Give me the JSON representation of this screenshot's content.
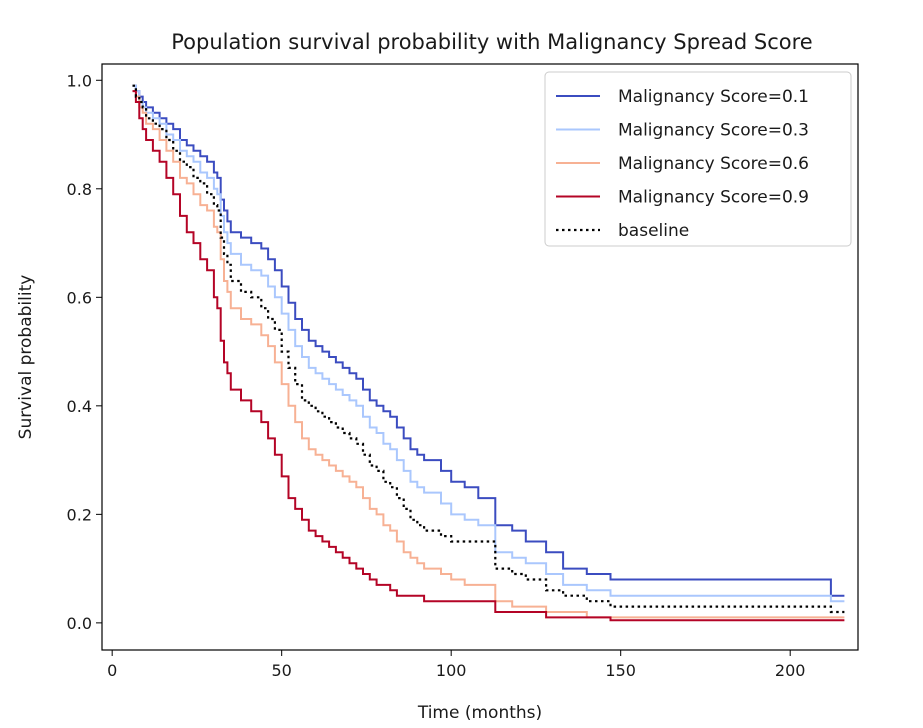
{
  "chart_data": {
    "type": "line",
    "title": "Population survival probability with Malignancy Spread Score",
    "xlabel": "Time (months)",
    "ylabel": "Survival probability",
    "xlim": [
      -3,
      220
    ],
    "ylim": [
      -0.05,
      1.03
    ],
    "xticks": [
      0,
      50,
      100,
      150,
      200
    ],
    "yticks": [
      0.0,
      0.2,
      0.4,
      0.6,
      0.8,
      1.0
    ],
    "grid": false,
    "legend_position": "top-right",
    "step": true,
    "series": [
      {
        "name": "Malignancy Score=0.1",
        "color": "#3b4cc0",
        "dash": "solid",
        "x": [
          6,
          7,
          8,
          9,
          10,
          12,
          14,
          16,
          18,
          20,
          22,
          24,
          26,
          28,
          30,
          31,
          32,
          33,
          34,
          35,
          38,
          41,
          44,
          46,
          48,
          50,
          52,
          54,
          56,
          58,
          60,
          62,
          64,
          66,
          68,
          70,
          72,
          74,
          76,
          78,
          80,
          82,
          84,
          86,
          88,
          90,
          92,
          97,
          100,
          104,
          108,
          113,
          118,
          122,
          128,
          133,
          140,
          147,
          152,
          158,
          165,
          175,
          190,
          205,
          212,
          216
        ],
        "y": [
          0.99,
          0.98,
          0.97,
          0.96,
          0.95,
          0.94,
          0.93,
          0.92,
          0.91,
          0.89,
          0.88,
          0.87,
          0.86,
          0.85,
          0.83,
          0.82,
          0.78,
          0.76,
          0.74,
          0.72,
          0.71,
          0.7,
          0.69,
          0.67,
          0.65,
          0.62,
          0.59,
          0.56,
          0.54,
          0.52,
          0.51,
          0.5,
          0.49,
          0.48,
          0.47,
          0.46,
          0.45,
          0.43,
          0.41,
          0.4,
          0.39,
          0.38,
          0.36,
          0.34,
          0.32,
          0.31,
          0.3,
          0.28,
          0.26,
          0.25,
          0.23,
          0.18,
          0.17,
          0.15,
          0.13,
          0.1,
          0.09,
          0.08,
          0.08,
          0.08,
          0.08,
          0.08,
          0.08,
          0.08,
          0.05,
          0.05
        ]
      },
      {
        "name": "Malignancy Score=0.3",
        "color": "#aac7fd",
        "dash": "solid",
        "x": [
          6,
          7,
          8,
          9,
          10,
          12,
          14,
          16,
          18,
          20,
          22,
          24,
          26,
          28,
          30,
          31,
          32,
          33,
          34,
          35,
          38,
          41,
          44,
          46,
          48,
          50,
          52,
          54,
          56,
          58,
          60,
          62,
          64,
          66,
          68,
          70,
          72,
          74,
          76,
          78,
          80,
          82,
          84,
          86,
          88,
          90,
          92,
          97,
          100,
          104,
          108,
          113,
          118,
          122,
          128,
          133,
          140,
          147,
          152,
          158,
          165,
          175,
          190,
          205,
          212,
          216
        ],
        "y": [
          0.99,
          0.98,
          0.96,
          0.95,
          0.94,
          0.93,
          0.92,
          0.9,
          0.89,
          0.87,
          0.86,
          0.85,
          0.83,
          0.82,
          0.8,
          0.79,
          0.75,
          0.72,
          0.7,
          0.68,
          0.66,
          0.65,
          0.64,
          0.62,
          0.6,
          0.57,
          0.54,
          0.51,
          0.49,
          0.47,
          0.46,
          0.45,
          0.44,
          0.43,
          0.42,
          0.41,
          0.4,
          0.38,
          0.36,
          0.35,
          0.33,
          0.32,
          0.3,
          0.28,
          0.26,
          0.25,
          0.24,
          0.22,
          0.2,
          0.19,
          0.18,
          0.13,
          0.12,
          0.11,
          0.09,
          0.07,
          0.06,
          0.05,
          0.05,
          0.05,
          0.05,
          0.05,
          0.05,
          0.05,
          0.04,
          0.04
        ]
      },
      {
        "name": "Malignancy Score=0.6",
        "color": "#f7b194",
        "dash": "solid",
        "x": [
          6,
          7,
          8,
          9,
          10,
          12,
          14,
          16,
          18,
          20,
          22,
          24,
          26,
          28,
          30,
          31,
          32,
          33,
          34,
          35,
          38,
          41,
          44,
          46,
          48,
          50,
          52,
          54,
          56,
          58,
          60,
          62,
          64,
          66,
          68,
          70,
          72,
          74,
          76,
          78,
          80,
          82,
          84,
          86,
          88,
          90,
          92,
          97,
          100,
          104,
          108,
          113,
          118,
          122,
          128,
          133,
          140,
          147,
          152,
          158,
          165,
          175,
          190,
          205,
          212,
          216
        ],
        "y": [
          0.98,
          0.97,
          0.95,
          0.94,
          0.92,
          0.91,
          0.89,
          0.87,
          0.85,
          0.82,
          0.81,
          0.79,
          0.77,
          0.76,
          0.73,
          0.72,
          0.67,
          0.63,
          0.61,
          0.58,
          0.56,
          0.55,
          0.53,
          0.51,
          0.48,
          0.44,
          0.4,
          0.37,
          0.34,
          0.32,
          0.31,
          0.3,
          0.29,
          0.28,
          0.27,
          0.26,
          0.25,
          0.23,
          0.21,
          0.2,
          0.18,
          0.17,
          0.15,
          0.13,
          0.12,
          0.11,
          0.1,
          0.09,
          0.08,
          0.07,
          0.07,
          0.04,
          0.03,
          0.03,
          0.02,
          0.02,
          0.01,
          0.01,
          0.01,
          0.01,
          0.01,
          0.01,
          0.01,
          0.01,
          0.01,
          0.01
        ]
      },
      {
        "name": "Malignancy Score=0.9",
        "color": "#b40426",
        "dash": "solid",
        "x": [
          6,
          7,
          8,
          9,
          10,
          12,
          14,
          16,
          18,
          20,
          22,
          24,
          26,
          28,
          30,
          31,
          32,
          33,
          34,
          35,
          38,
          41,
          44,
          46,
          48,
          50,
          52,
          54,
          56,
          58,
          60,
          62,
          64,
          66,
          68,
          70,
          72,
          74,
          76,
          78,
          80,
          82,
          84,
          86,
          88,
          90,
          92,
          97,
          100,
          104,
          108,
          113,
          118,
          122,
          128,
          133,
          140,
          147,
          152,
          158,
          165,
          175,
          190,
          205,
          212,
          216
        ],
        "y": [
          0.98,
          0.96,
          0.93,
          0.91,
          0.89,
          0.87,
          0.85,
          0.82,
          0.79,
          0.75,
          0.72,
          0.7,
          0.67,
          0.65,
          0.6,
          0.58,
          0.52,
          0.48,
          0.46,
          0.43,
          0.41,
          0.39,
          0.37,
          0.34,
          0.31,
          0.27,
          0.23,
          0.21,
          0.19,
          0.17,
          0.16,
          0.15,
          0.14,
          0.13,
          0.12,
          0.11,
          0.1,
          0.09,
          0.08,
          0.07,
          0.07,
          0.06,
          0.05,
          0.05,
          0.05,
          0.05,
          0.04,
          0.04,
          0.04,
          0.04,
          0.04,
          0.02,
          0.02,
          0.02,
          0.01,
          0.01,
          0.01,
          0.005,
          0.005,
          0.005,
          0.005,
          0.005,
          0.005,
          0.005,
          0.005,
          0.005
        ]
      },
      {
        "name": "baseline",
        "color": "#000000",
        "dash": "dotted",
        "x": [
          6,
          7,
          8,
          9,
          10,
          12,
          14,
          16,
          18,
          20,
          22,
          24,
          26,
          28,
          30,
          31,
          32,
          33,
          34,
          35,
          38,
          41,
          44,
          46,
          48,
          50,
          52,
          54,
          56,
          58,
          60,
          62,
          64,
          66,
          68,
          70,
          72,
          74,
          76,
          78,
          80,
          82,
          84,
          86,
          88,
          90,
          92,
          97,
          100,
          104,
          108,
          113,
          118,
          122,
          128,
          133,
          140,
          147,
          152,
          158,
          165,
          175,
          190,
          205,
          212,
          216
        ],
        "y": [
          0.99,
          0.97,
          0.96,
          0.95,
          0.93,
          0.92,
          0.91,
          0.89,
          0.87,
          0.85,
          0.84,
          0.82,
          0.81,
          0.79,
          0.77,
          0.76,
          0.71,
          0.68,
          0.66,
          0.63,
          0.61,
          0.6,
          0.58,
          0.56,
          0.54,
          0.5,
          0.47,
          0.44,
          0.41,
          0.4,
          0.39,
          0.38,
          0.37,
          0.36,
          0.35,
          0.34,
          0.33,
          0.31,
          0.29,
          0.28,
          0.26,
          0.25,
          0.23,
          0.21,
          0.19,
          0.18,
          0.17,
          0.16,
          0.15,
          0.15,
          0.15,
          0.1,
          0.09,
          0.08,
          0.06,
          0.05,
          0.04,
          0.03,
          0.03,
          0.03,
          0.03,
          0.03,
          0.03,
          0.03,
          0.02,
          0.02
        ]
      }
    ]
  }
}
